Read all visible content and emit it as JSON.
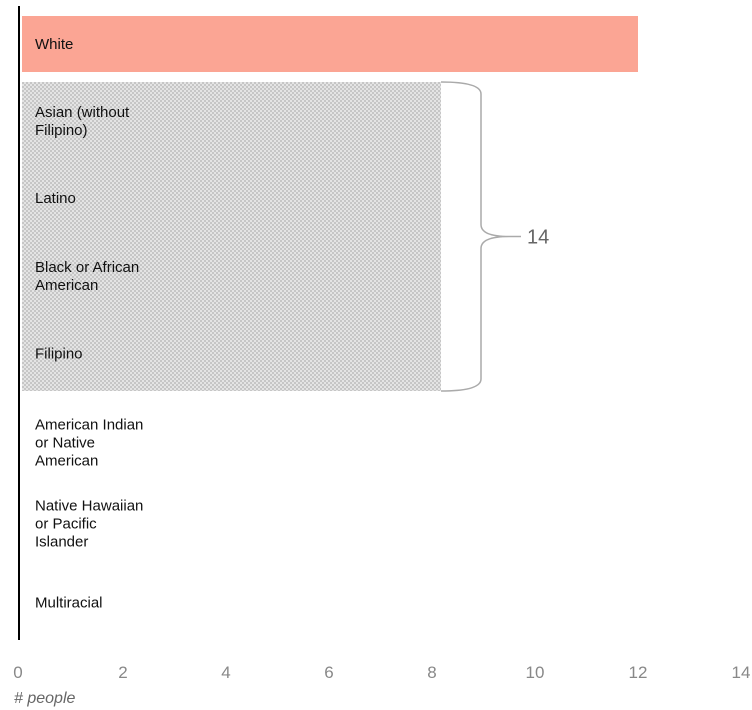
{
  "chart_data": {
    "type": "bar",
    "orientation": "horizontal",
    "categories": [
      "White",
      "Asian (without Filipino)",
      "Latino",
      "Black or African American",
      "Filipino",
      "American Indian or Native American",
      "Native Hawaiian or Pacific Islander",
      "Multiracial"
    ],
    "values": [
      12,
      null,
      null,
      null,
      null,
      0,
      0,
      0
    ],
    "group": {
      "categories": [
        "Asian (without Filipino)",
        "Latino",
        "Black or African American",
        "Filipino"
      ],
      "total": 14,
      "label": "14",
      "style": "hatched"
    },
    "xlabel": "# people",
    "xlim": [
      0,
      14
    ],
    "xticks": [
      "0",
      "2",
      "4",
      "6",
      "8",
      "10",
      "12",
      "14"
    ],
    "grid": false,
    "colors": {
      "highlight_bar": "#fba594",
      "group_fill": "#d3d3d3",
      "axis_line": "#000000",
      "tick_text": "#888888",
      "brace": "#aaaaaa"
    }
  }
}
